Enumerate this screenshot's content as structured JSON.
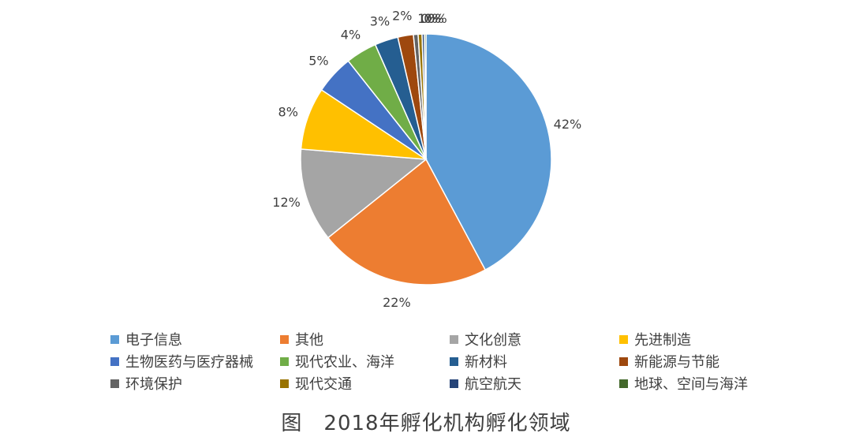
{
  "chart_data": {
    "type": "pie",
    "title": "图　2018年孵化机构孵化领域",
    "legend_position": "bottom",
    "series": [
      {
        "name": "电子信息",
        "value": 42,
        "label": "42%",
        "color": "#5B9BD5"
      },
      {
        "name": "其他",
        "value": 22,
        "label": "22%",
        "color": "#ED7D31"
      },
      {
        "name": "文化创意",
        "value": 12,
        "label": "12%",
        "color": "#A5A5A5"
      },
      {
        "name": "先进制造",
        "value": 8,
        "label": "8%",
        "color": "#FFC000"
      },
      {
        "name": "生物医药与医疗器械",
        "value": 5,
        "label": "5%",
        "color": "#4472C4"
      },
      {
        "name": "现代农业、海洋",
        "value": 4,
        "label": "4%",
        "color": "#70AD47"
      },
      {
        "name": "新材料",
        "value": 3,
        "label": "3%",
        "color": "#255E91"
      },
      {
        "name": "新能源与节能",
        "value": 2,
        "label": "2%",
        "color": "#9E480E"
      },
      {
        "name": "环境保护",
        "value": 0.6,
        "label": "1%",
        "color": "#636363"
      },
      {
        "name": "现代交通",
        "value": 0.5,
        "label": "0%",
        "color": "#997300"
      },
      {
        "name": "航空航天",
        "value": 0.3,
        "label": "0%",
        "color": "#264478"
      },
      {
        "name": "地球、空间与海洋",
        "value": 0.2,
        "label": "0%",
        "color": "#43682B"
      }
    ]
  }
}
